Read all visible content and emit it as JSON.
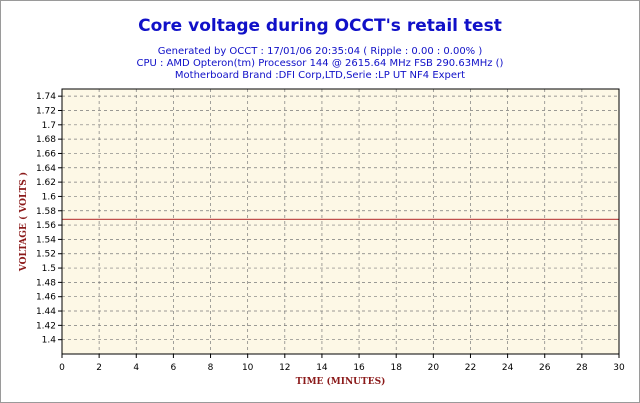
{
  "chart_data": {
    "type": "line",
    "title": "Core voltage during OCCT's retail test",
    "subtitle_lines": [
      "Generated by OCCT : 17/01/06 20:35:04 ( Ripple : 0.00 : 0.00% )",
      "CPU : AMD Opteron(tm) Processor 144    @ 2615.64 MHz FSB 290.63MHz ()",
      "Motherboard Brand :DFI Corp,LTD,Serie :LP UT NF4 Expert"
    ],
    "xlabel": "TIME (MINUTES)",
    "ylabel": "VOLTAGE ( VOLTS )",
    "xlim": [
      0,
      30
    ],
    "ylim": [
      1.38,
      1.75
    ],
    "xticks": [
      0,
      2,
      4,
      6,
      8,
      10,
      12,
      14,
      16,
      18,
      20,
      22,
      24,
      26,
      28,
      30
    ],
    "yticks": [
      1.4,
      1.42,
      1.44,
      1.46,
      1.48,
      1.5,
      1.52,
      1.54,
      1.56,
      1.58,
      1.6,
      1.62,
      1.64,
      1.66,
      1.68,
      1.7,
      1.72,
      1.74
    ],
    "grid": true,
    "series": [
      {
        "x": [
          0,
          30
        ],
        "values": [
          1.568,
          1.568
        ],
        "color": "#c0504d"
      }
    ],
    "colors": {
      "plot_background": "#fdf8e6",
      "grid": "#7a7a7a",
      "title": "#1010c8",
      "axis_title": "#8b1a1a"
    }
  }
}
